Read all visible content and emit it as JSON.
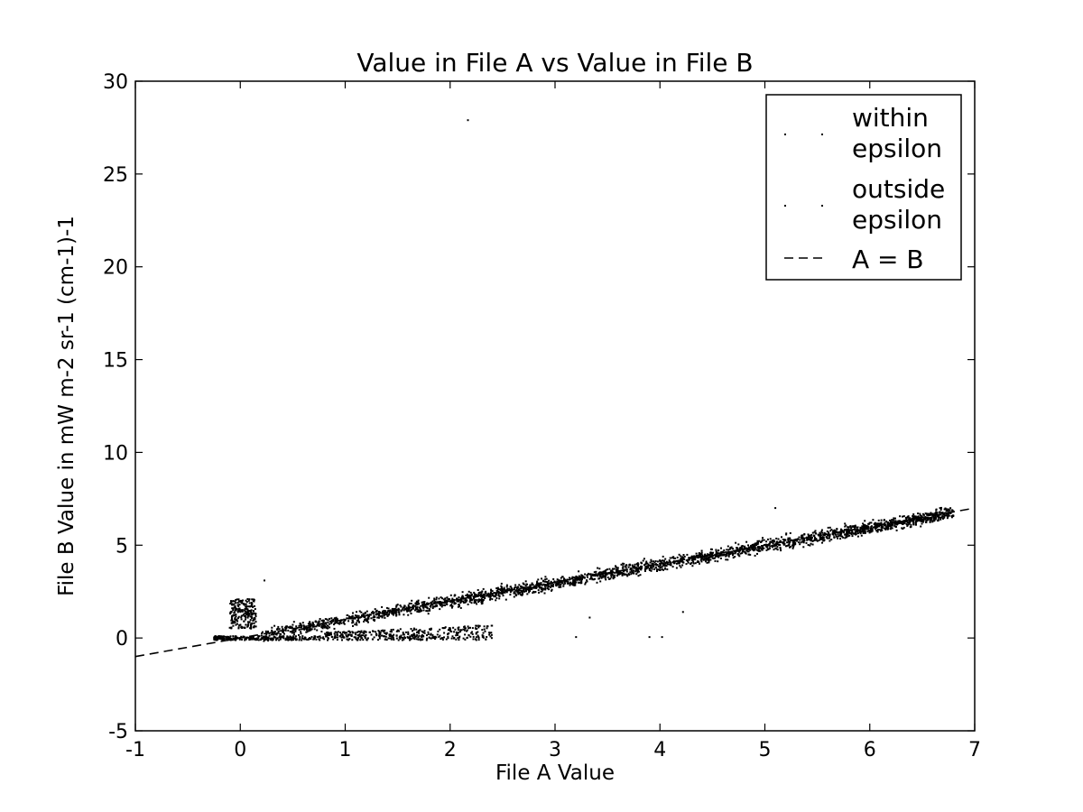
{
  "chart_data": {
    "type": "scatter",
    "title": "Value in File A vs Value in File B",
    "xlabel": "File A Value",
    "ylabel": "File B Value in mW m-2 sr-1 (cm-1)-1",
    "xlim": [
      -1,
      7
    ],
    "ylim": [
      -5,
      30
    ],
    "xticks": [
      -1,
      0,
      1,
      2,
      3,
      4,
      5,
      6,
      7
    ],
    "yticks": [
      -5,
      0,
      5,
      10,
      15,
      20,
      25,
      30
    ],
    "grid": false,
    "legend_position": "top-right",
    "series": [
      {
        "name": "within\nepsilon",
        "kind": "points",
        "color": "#000000",
        "description_clusters": [
          {
            "x_range": [
              0.2,
              6.8
            ],
            "trend": "y ≈ x",
            "spread": 0.6,
            "count": 2600
          },
          {
            "x_range": [
              -0.1,
              0.15
            ],
            "y_range": [
              0.5,
              2.1
            ],
            "count": 220
          },
          {
            "x_range": [
              0.8,
              2.4
            ],
            "y_range": [
              0.1,
              0.75
            ],
            "count": 260
          },
          {
            "x_range": [
              -0.25,
              2.4
            ],
            "y_range": [
              -0.12,
              0.1
            ],
            "count": 420
          }
        ],
        "outliers": [
          [
            2.17,
            27.9
          ],
          [
            0.23,
            3.1
          ],
          [
            3.2,
            0.05
          ],
          [
            3.9,
            0.05
          ],
          [
            4.02,
            0.05
          ],
          [
            4.22,
            1.4
          ],
          [
            5.1,
            7.0
          ],
          [
            3.33,
            1.1
          ]
        ]
      },
      {
        "name": "outside\nepsilon",
        "kind": "points",
        "color": "#000000",
        "points": []
      },
      {
        "name": "A = B",
        "kind": "line",
        "style": "dashed",
        "color": "#000000",
        "x": [
          -1,
          7
        ],
        "y": [
          -1,
          7
        ]
      }
    ]
  }
}
